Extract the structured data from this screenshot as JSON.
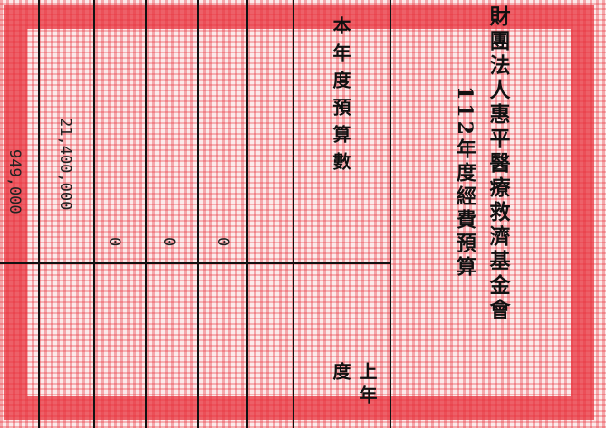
{
  "header": {
    "organization": "財團法人惠平醫療救濟基金會",
    "title": "112年度經費預算"
  },
  "table": {
    "column_headers": [
      "本年度預算數",
      "上年度"
    ],
    "rows": [
      "21,400,000",
      "0",
      "0",
      "0",
      "949,000"
    ]
  }
}
